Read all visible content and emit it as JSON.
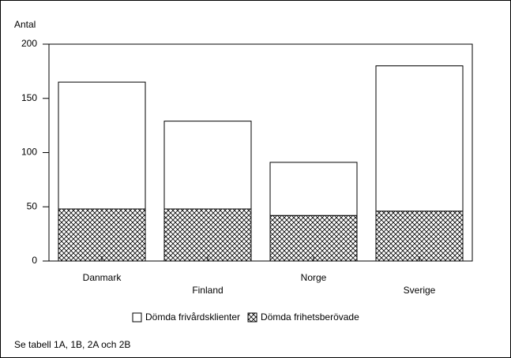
{
  "chart_data": {
    "type": "stacked_bar",
    "y_label": "Antal",
    "note": "Se tabell 1A, 1B, 2A och 2B",
    "categories": [
      "Danmark",
      "Finland",
      "Norge",
      "Sverige"
    ],
    "series": [
      {
        "name": "Dömda frivårdsklienter",
        "color": "#ffffff",
        "values": [
          117,
          81,
          49,
          134
        ]
      },
      {
        "name": "Dömda frihetsberövade",
        "color": "#000000",
        "hatch": "crosshatch",
        "values": [
          48,
          48,
          42,
          46
        ]
      }
    ],
    "ylim": [
      0,
      200
    ],
    "yticks": [
      0,
      50,
      100,
      150,
      200
    ],
    "grid": false,
    "legend": "bottom"
  }
}
